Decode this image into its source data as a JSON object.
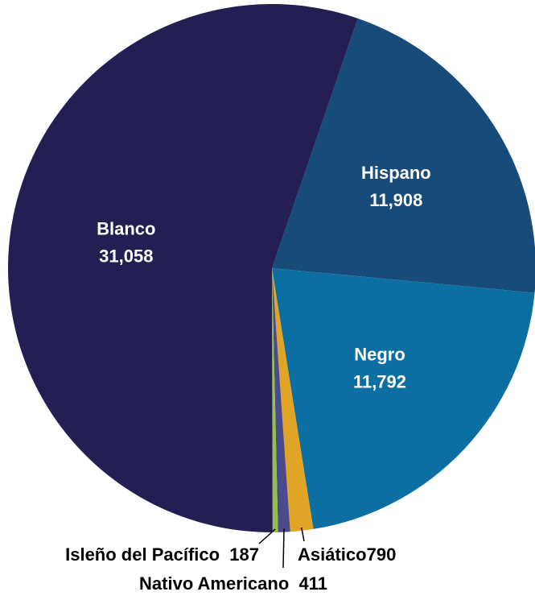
{
  "chart_data": {
    "type": "pie",
    "categories": [
      "Hispano",
      "Negro",
      "Asiático",
      "Nativo Americano",
      "Isleño del Pacífico",
      "Blanco"
    ],
    "values": [
      11908,
      11792,
      790,
      411,
      187,
      31058
    ],
    "value_labels": [
      "11,908",
      "11,792",
      "790",
      "411",
      "187",
      "31,058"
    ],
    "colors": [
      "#174b7a",
      "#0b6fa1",
      "#e0a526",
      "#4b4a8c",
      "#94c04a",
      "#231f52"
    ]
  }
}
